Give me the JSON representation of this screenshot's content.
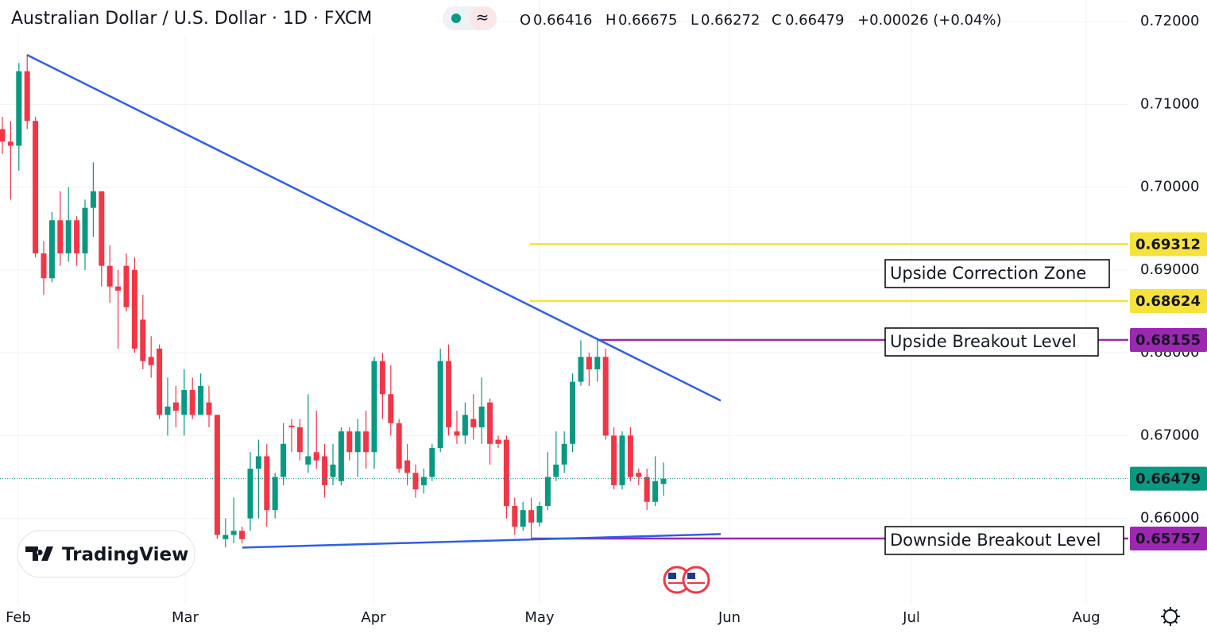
{
  "chart_data": {
    "type": "candlestick",
    "title": "Australian Dollar / U.S. Dollar · 1D · FXCM",
    "header_values": [
      {
        "key": "O",
        "text": "0.66416"
      },
      {
        "key": "H",
        "text": "0.66675"
      },
      {
        "key": "L",
        "text": "0.66272"
      },
      {
        "key": "C",
        "text": "0.66479"
      }
    ],
    "change": "+0.00026 (+0.04%)",
    "up_color": "#089981",
    "down_color": "#f23645",
    "open": [
      0.707,
      0.7055,
      0.705,
      0.714,
      0.708,
      0.692,
      0.689,
      0.696,
      0.692,
      0.696,
      0.692,
      0.6975,
      0.6995,
      0.6905,
      0.688,
      0.6905,
      0.69,
      0.684,
      0.6795,
      0.6805,
      0.6725,
      0.674,
      0.6725,
      0.6755,
      0.6725,
      0.674,
      0.6725,
      0.6575,
      0.658,
      0.6585,
      0.66,
      0.666,
      0.6675,
      0.661,
      0.665,
      0.6712,
      0.671,
      0.6665,
      0.668,
      0.6675,
      0.665,
      0.6645,
      0.6705,
      0.668,
      0.6705,
      0.668,
      0.679,
      0.675,
      0.6715,
      0.667,
      0.6655,
      0.664,
      0.665,
      0.6685,
      0.679,
      0.6705,
      0.67,
      0.672,
      0.671,
      0.674,
      0.6695,
      0.6695,
      0.6615,
      0.659,
      0.661,
      0.6595,
      0.6615,
      0.665,
      0.6665,
      0.669,
      0.6765,
      0.6795,
      0.678,
      0.6795,
      0.67,
      0.664,
      0.67,
      0.6655,
      0.665,
      0.662,
      0.66416
    ],
    "high": [
      0.7085,
      0.708,
      0.715,
      0.716,
      0.7085,
      0.6935,
      0.697,
      0.6995,
      0.7,
      0.6965,
      0.6985,
      0.703,
      0.6995,
      0.693,
      0.69,
      0.692,
      0.6915,
      0.687,
      0.682,
      0.681,
      0.677,
      0.676,
      0.678,
      0.677,
      0.6775,
      0.676,
      0.6725,
      0.66,
      0.6625,
      0.659,
      0.668,
      0.6695,
      0.669,
      0.6655,
      0.6715,
      0.672,
      0.672,
      0.675,
      0.673,
      0.669,
      0.669,
      0.671,
      0.671,
      0.672,
      0.673,
      0.6795,
      0.68,
      0.6785,
      0.672,
      0.669,
      0.6665,
      0.666,
      0.669,
      0.6805,
      0.681,
      0.673,
      0.674,
      0.675,
      0.677,
      0.6745,
      0.67,
      0.67,
      0.6625,
      0.662,
      0.6625,
      0.662,
      0.668,
      0.6705,
      0.6705,
      0.6775,
      0.6815,
      0.68,
      0.6818,
      0.6805,
      0.671,
      0.6705,
      0.671,
      0.666,
      0.666,
      0.6675,
      0.66675
    ],
    "low": [
      0.704,
      0.6985,
      0.702,
      0.707,
      0.6915,
      0.687,
      0.6885,
      0.6905,
      0.691,
      0.6905,
      0.69,
      0.694,
      0.688,
      0.686,
      0.6805,
      0.685,
      0.68,
      0.678,
      0.677,
      0.672,
      0.67,
      0.671,
      0.67,
      0.672,
      0.6725,
      0.671,
      0.6575,
      0.6565,
      0.657,
      0.657,
      0.6585,
      0.66,
      0.659,
      0.66,
      0.664,
      0.668,
      0.667,
      0.6655,
      0.666,
      0.6625,
      0.664,
      0.664,
      0.667,
      0.665,
      0.666,
      0.666,
      0.672,
      0.67,
      0.6655,
      0.664,
      0.6625,
      0.663,
      0.6645,
      0.668,
      0.67,
      0.669,
      0.669,
      0.6695,
      0.669,
      0.6665,
      0.6685,
      0.66,
      0.658,
      0.6585,
      0.6575,
      0.659,
      0.661,
      0.6645,
      0.6655,
      0.668,
      0.676,
      0.676,
      0.6765,
      0.6695,
      0.6635,
      0.6635,
      0.6645,
      0.664,
      0.661,
      0.6615,
      0.66272
    ],
    "close": [
      0.7055,
      0.705,
      0.714,
      0.708,
      0.692,
      0.689,
      0.696,
      0.692,
      0.696,
      0.692,
      0.6975,
      0.6995,
      0.6905,
      0.688,
      0.6875,
      0.6855,
      0.6805,
      0.679,
      0.6785,
      0.6725,
      0.6735,
      0.673,
      0.6755,
      0.6725,
      0.676,
      0.6725,
      0.658,
      0.658,
      0.6585,
      0.6575,
      0.666,
      0.6675,
      0.661,
      0.665,
      0.669,
      0.671,
      0.668,
      0.6675,
      0.667,
      0.664,
      0.6665,
      0.6705,
      0.668,
      0.6705,
      0.668,
      0.679,
      0.675,
      0.6715,
      0.666,
      0.6655,
      0.6635,
      0.665,
      0.6685,
      0.679,
      0.671,
      0.67,
      0.6725,
      0.671,
      0.6735,
      0.669,
      0.669,
      0.6615,
      0.659,
      0.661,
      0.6595,
      0.6615,
      0.665,
      0.6665,
      0.669,
      0.6765,
      0.6795,
      0.678,
      0.6795,
      0.67,
      0.664,
      0.67,
      0.665,
      0.665,
      0.662,
      0.6645,
      0.66479
    ],
    "ylim": [
      0.6497,
      0.7226
    ],
    "yticks": [
      {
        "value": 0.72,
        "label": "0.72000"
      },
      {
        "value": 0.71,
        "label": "0.71000"
      },
      {
        "value": 0.7,
        "label": "0.70000"
      },
      {
        "value": 0.69,
        "label": "0.69000"
      },
      {
        "value": 0.68,
        "label": "0.68000"
      },
      {
        "value": 0.67,
        "label": "0.67000"
      },
      {
        "value": 0.66,
        "label": "0.66000"
      }
    ],
    "xticks": [
      "Feb",
      "Mar",
      "Apr",
      "May",
      "Jun",
      "Jul",
      "Aug"
    ],
    "grid": true,
    "trendlines": [
      {
        "color": "#2f5fe8",
        "values": [
          0.71597,
          0.67422
        ]
      },
      {
        "color": "#2f5fe8",
        "values": [
          0.65647,
          0.6581
        ]
      }
    ],
    "levels": [
      {
        "value": 0.69312,
        "color": "#f7e13d"
      },
      {
        "value": 0.68624,
        "color": "#f7e13d"
      },
      {
        "value": 0.68155,
        "color": "#9c27b0"
      },
      {
        "value": 0.65757,
        "color": "#9c27b0"
      }
    ],
    "annotations": [
      "Upside Correction Zone",
      "Upside Breakout Level",
      "Downside Breakout Level"
    ],
    "brand": "TradingView"
  }
}
